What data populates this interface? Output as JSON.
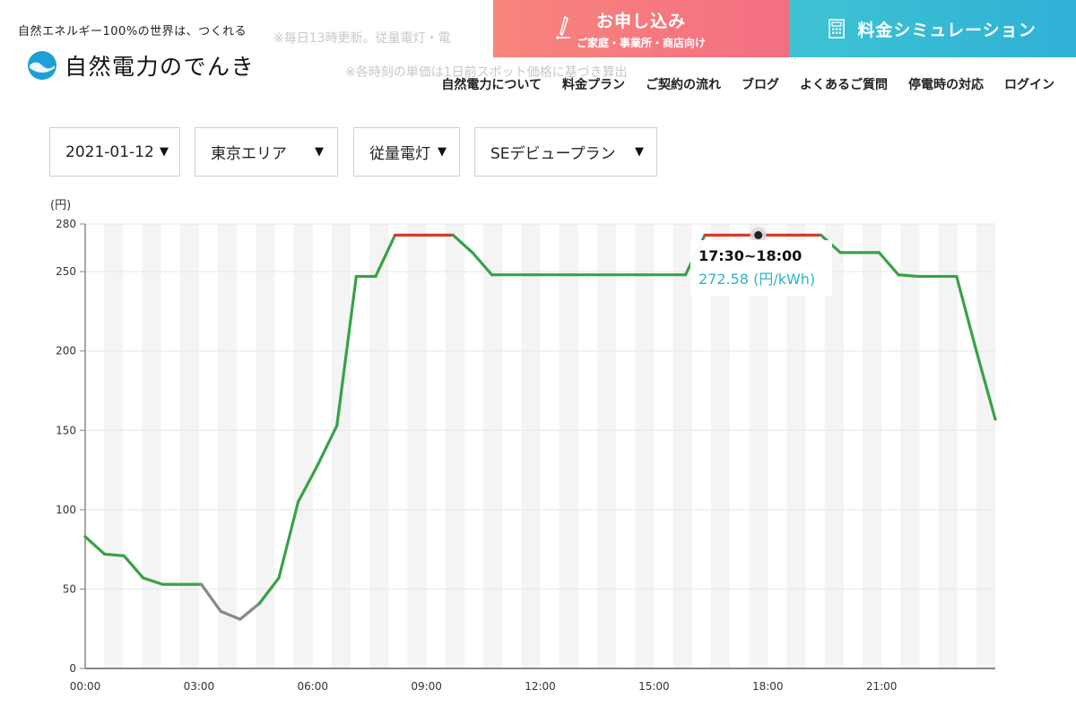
{
  "header": {
    "tagline": "自然エネルギー100%の世界は、つくれる",
    "logo_text": "自然電力のでんき",
    "apply_main": "お申し込み",
    "apply_sub": "ご家庭・事業所・商店向け",
    "sim_label": "料金シミュレーション",
    "nav": [
      "自然電力について",
      "料金プラン",
      "ご契約の流れ",
      "ブログ",
      "よくあるご質問",
      "停電時の対応",
      "ログイン"
    ]
  },
  "background_notices": [
    "※毎日13時更新。従量電灯・電",
    "※各時刻の単価は1日前スポット価格に基づき算出"
  ],
  "selects": {
    "date": "2021-01-12",
    "area": "東京エリア",
    "type": "従量電灯",
    "plan": "SEデビュープラン"
  },
  "tooltip": {
    "time": "17:30~18:00",
    "value": "272.58 (円/kWh)"
  },
  "chart_data": {
    "type": "line",
    "ylabel": "(円)",
    "ylim": [
      0,
      280
    ],
    "yticks": [
      "0",
      "50",
      "100",
      "150",
      "200",
      "250",
      "280"
    ],
    "xticks": [
      "00:00",
      "03:00",
      "06:00",
      "09:00",
      "12:00",
      "15:00",
      "18:00",
      "21:00"
    ],
    "interval_minutes": 30,
    "values": [
      83,
      72,
      71,
      57,
      53,
      53,
      53,
      36,
      31,
      41,
      57,
      105,
      128,
      153,
      247,
      247,
      273,
      273,
      273,
      273,
      262,
      248,
      248,
      248,
      248,
      248,
      248,
      248,
      248,
      248,
      248,
      248,
      273,
      273,
      273,
      273,
      273,
      273,
      273,
      262,
      262,
      262,
      248,
      247,
      247,
      247,
      201,
      157
    ],
    "colors": {
      "normal": "#37a246",
      "high": "#d8392b",
      "low": "#888888",
      "grid": "#e6e6e6",
      "stripe": "#f4f4f4",
      "axis": "#888888"
    },
    "highlight_index": 35
  }
}
